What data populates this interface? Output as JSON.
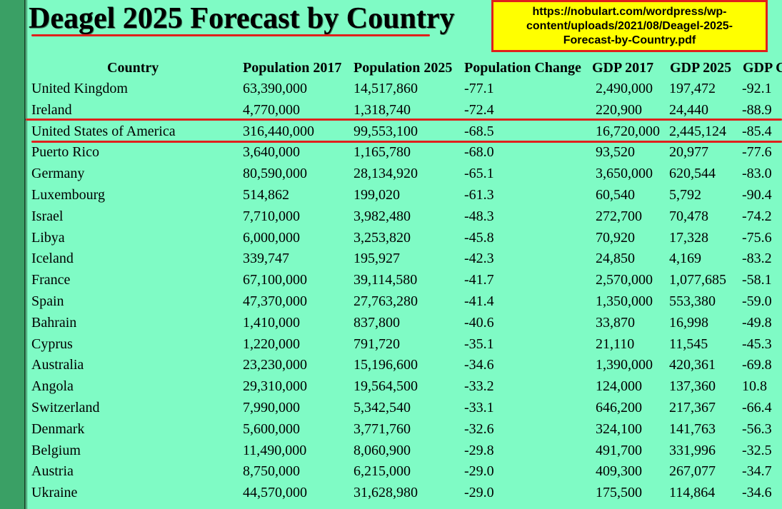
{
  "title": "Deagel 2025 Forecast by Country",
  "source_url": "https://nobulart.com/wordpress/wp-content/uploads/2021/08/Deagel-2025-Forecast-by-Country.pdf",
  "colors": {
    "background": "#7ffbc5",
    "highlight": "#e0201c",
    "source_box": "#ffff00",
    "left_strip": "#3aa065"
  },
  "table": {
    "headers": [
      "Country",
      "Population 2017",
      "Population 2025",
      "Population Change",
      "GDP 2017",
      "GDP 2025",
      "GDP C"
    ],
    "highlighted_row": "United States of America",
    "rows": [
      [
        "United Kingdom",
        "63,390,000",
        "14,517,860",
        "-77.1",
        "2,490,000",
        "197,472",
        "-92.1"
      ],
      [
        "Ireland",
        "4,770,000",
        "1,318,740",
        "-72.4",
        "220,900",
        "24,440",
        "-88.9"
      ],
      [
        "United States of America",
        "316,440,000",
        "99,553,100",
        "-68.5",
        "16,720,000",
        "2,445,124",
        "-85.4"
      ],
      [
        "Puerto Rico",
        "3,640,000",
        "1,165,780",
        "-68.0",
        "93,520",
        "20,977",
        "-77.6"
      ],
      [
        "Germany",
        "80,590,000",
        "28,134,920",
        "-65.1",
        "3,650,000",
        "620,544",
        "-83.0"
      ],
      [
        "Luxembourg",
        "514,862",
        "199,020",
        "-61.3",
        "60,540",
        "5,792",
        "-90.4"
      ],
      [
        "Israel",
        "7,710,000",
        "3,982,480",
        "-48.3",
        "272,700",
        "70,478",
        "-74.2"
      ],
      [
        "Libya",
        "6,000,000",
        "3,253,820",
        "-45.8",
        "70,920",
        "17,328",
        "-75.6"
      ],
      [
        "Iceland",
        "339,747",
        "195,927",
        "-42.3",
        "24,850",
        "4,169",
        "-83.2"
      ],
      [
        "France",
        "67,100,000",
        "39,114,580",
        "-41.7",
        "2,570,000",
        "1,077,685",
        "-58.1"
      ],
      [
        "Spain",
        "47,370,000",
        "27,763,280",
        "-41.4",
        "1,350,000",
        "553,380",
        "-59.0"
      ],
      [
        "Bahrain",
        "1,410,000",
        "837,800",
        "-40.6",
        "33,870",
        "16,998",
        "-49.8"
      ],
      [
        "Cyprus",
        "1,220,000",
        "791,720",
        "-35.1",
        "21,110",
        "11,545",
        "-45.3"
      ],
      [
        "Australia",
        "23,230,000",
        "15,196,600",
        "-34.6",
        "1,390,000",
        "420,361",
        "-69.8"
      ],
      [
        "Angola",
        "29,310,000",
        "19,564,500",
        "-33.2",
        "124,000",
        "137,360",
        "10.8"
      ],
      [
        "Switzerland",
        "7,990,000",
        "5,342,540",
        "-33.1",
        "646,200",
        "217,367",
        "-66.4"
      ],
      [
        "Denmark",
        "5,600,000",
        "3,771,760",
        "-32.6",
        "324,100",
        "141,763",
        "-56.3"
      ],
      [
        "Belgium",
        "11,490,000",
        "8,060,900",
        "-29.8",
        "491,700",
        "331,996",
        "-32.5"
      ],
      [
        "Austria",
        "8,750,000",
        "6,215,000",
        "-29.0",
        "409,300",
        "267,077",
        "-34.7"
      ],
      [
        "Ukraine",
        "44,570,000",
        "31,628,980",
        "-29.0",
        "175,500",
        "114,864",
        "-34.6"
      ]
    ]
  }
}
